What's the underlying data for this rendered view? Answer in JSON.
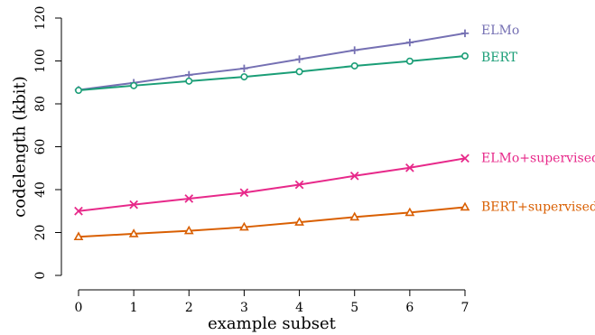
{
  "chart_data": {
    "type": "line",
    "xlabel": "example subset",
    "ylabel": "codelength (kbit)",
    "xlim": [
      0,
      7
    ],
    "ylim": [
      0,
      120
    ],
    "x_ticks": [
      "0",
      "1",
      "2",
      "3",
      "4",
      "5",
      "6",
      "7"
    ],
    "y_ticks": [
      "0",
      "20",
      "40",
      "60",
      "80",
      "100",
      "120"
    ],
    "grid": false,
    "legend": "direct labels at line ends",
    "x": [
      0,
      1,
      2,
      3,
      4,
      5,
      6,
      7
    ],
    "series": [
      {
        "name": "ELMo",
        "color": "#7570b3",
        "marker": "plus",
        "values": [
          86.5,
          89.8,
          93.5,
          96.5,
          100.8,
          105.0,
          108.6,
          112.9
        ]
      },
      {
        "name": "BERT",
        "color": "#1b9e77",
        "marker": "circle",
        "values": [
          86.3,
          88.5,
          90.6,
          92.6,
          95.0,
          97.7,
          99.9,
          102.3
        ]
      },
      {
        "name": "ELMo+supervised",
        "color": "#e7298a",
        "marker": "cross",
        "values": [
          30.0,
          33.0,
          35.8,
          38.6,
          42.3,
          46.4,
          50.2,
          54.6
        ]
      },
      {
        "name": "BERT+supervised",
        "color": "#d95f02",
        "marker": "triangle",
        "values": [
          18.0,
          19.4,
          20.8,
          22.5,
          24.8,
          27.2,
          29.3,
          31.8
        ]
      }
    ]
  }
}
